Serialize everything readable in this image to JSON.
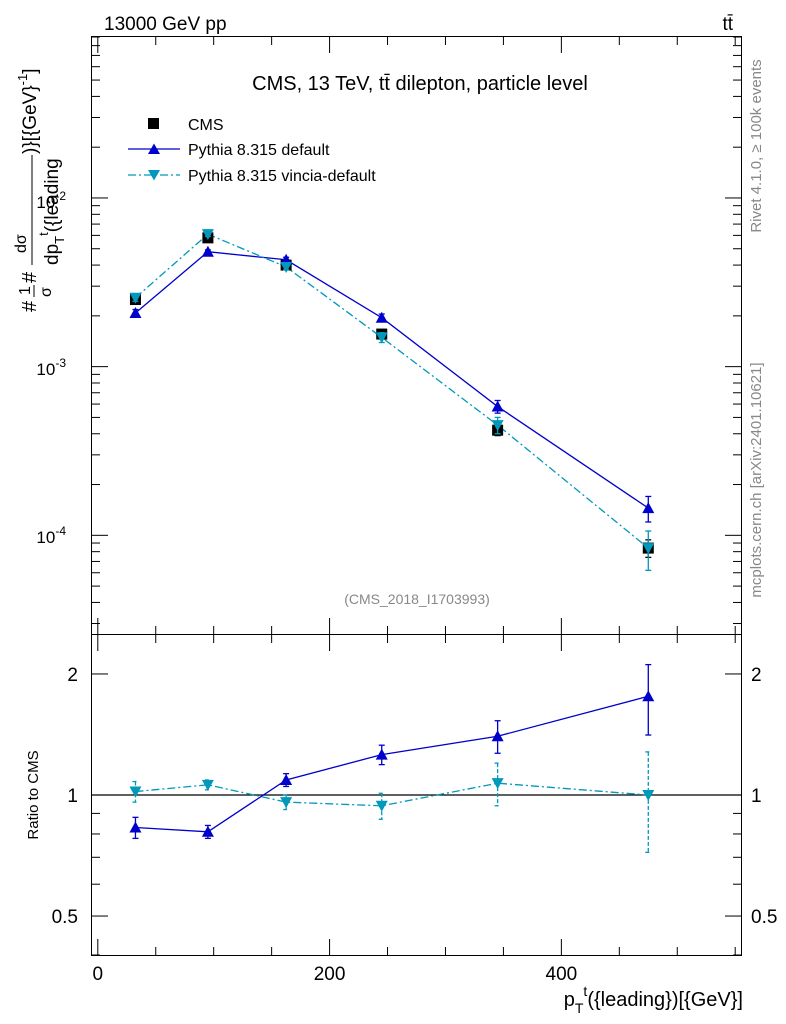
{
  "header": {
    "left": "13000 GeV pp",
    "right": "tt̄"
  },
  "side_labels": {
    "rivet": "Rivet 4.1.0, ≥ 100k events",
    "mcplots": "mcplots.cern.ch [arXiv:2401.10621]"
  },
  "colors": {
    "cms": "#000000",
    "pythia_default": "#0000cc",
    "pythia_vincia": "#0099bb",
    "axis": "#000000",
    "watermark": "#888888"
  },
  "chart_data": [
    {
      "type": "line",
      "title": "CMS, 13 TeV, tt̄ dilepton, particle level",
      "ylabel_main": "#1/σ#  dσ/dp_T^t({leading})[{GeV}^-1]",
      "ylabel_display": {
        "frac_prefix": "#",
        "frac1_num": "1",
        "frac1_den": "σ",
        "frac_sep": "#",
        "frac2_num": "dσ",
        "frac2_den": "dp",
        "frac2_den_sub": "T",
        "frac2_den_sup": "t",
        "frac2_den_tail": "({leading",
        "tail": ")}[{GeV}",
        "tail_sup": "-1",
        "tail_end": "]"
      },
      "xlabel": "p_T^t({leading})[{GeV}]",
      "xlabel_display": {
        "base": "p",
        "sub": "T",
        "sup": "t",
        "tail": "({leading})[{GeV}]"
      },
      "yscale": "log",
      "xlim": [
        -5,
        555
      ],
      "ylim": [
        2.6e-05,
        0.09
      ],
      "y_ticks": [
        {
          "base": "10",
          "exp": "-2"
        },
        {
          "base": "10",
          "exp": "-3"
        },
        {
          "base": "10",
          "exp": "-4"
        }
      ],
      "watermark": "(CMS_2018_I1703993)",
      "legend_position": "top-left",
      "series": [
        {
          "name": "CMS",
          "marker": "square",
          "x": [
            32.5,
            95,
            162.5,
            245,
            345,
            475
          ],
          "y": [
            0.0025,
            0.0058,
            0.004,
            0.00156,
            0.00042,
            8.4e-05
          ],
          "yerr_lo": [
            0.00012,
            0.00025,
            0.0002,
            0.0001,
            3e-05,
            1e-05
          ],
          "yerr_hi": [
            0.00012,
            0.00025,
            0.0002,
            0.0001,
            3e-05,
            1e-05
          ]
        },
        {
          "name": "Pythia 8.315 default",
          "marker": "triangle-up",
          "line": "solid",
          "x": [
            32.5,
            95,
            162.5,
            245,
            345,
            475
          ],
          "y": [
            0.00208,
            0.0048,
            0.0043,
            0.00195,
            0.00058,
            0.000145
          ],
          "yerr_lo": [
            0.0001,
            0.00012,
            0.00015,
            0.0001,
            5e-05,
            2.5e-05
          ],
          "yerr_hi": [
            0.0001,
            0.00012,
            0.00015,
            0.0001,
            5e-05,
            2.5e-05
          ]
        },
        {
          "name": "Pythia 8.315 vincia-default",
          "marker": "triangle-down",
          "line": "dashdot",
          "x": [
            32.5,
            95,
            162.5,
            245,
            345,
            475
          ],
          "y": [
            0.00256,
            0.0061,
            0.0039,
            0.00149,
            0.00045,
            8.4e-05
          ],
          "yerr_lo": [
            0.00012,
            0.00018,
            0.00015,
            0.0001,
            5e-05,
            2.2e-05
          ],
          "yerr_hi": [
            0.00012,
            0.00018,
            0.00015,
            0.0001,
            5e-05,
            2.2e-05
          ]
        }
      ]
    },
    {
      "type": "line",
      "ylabel": "Ratio to CMS",
      "yscale": "log",
      "xlim": [
        -5,
        555
      ],
      "ylim": [
        0.4,
        2.5
      ],
      "y_ticks": [
        "0.5",
        "1",
        "2"
      ],
      "x_ticks": [
        "0",
        "200",
        "400"
      ],
      "reference_line": 1,
      "series": [
        {
          "name": "Pythia 8.315 default",
          "x": [
            32.5,
            95,
            162.5,
            245,
            345,
            475
          ],
          "y": [
            0.83,
            0.81,
            1.09,
            1.26,
            1.4,
            1.76
          ],
          "yerr_lo": [
            0.05,
            0.03,
            0.04,
            0.07,
            0.13,
            0.35
          ],
          "yerr_hi": [
            0.05,
            0.03,
            0.04,
            0.07,
            0.13,
            0.35
          ]
        },
        {
          "name": "Pythia 8.315 vincia-default",
          "x": [
            32.5,
            95,
            162.5,
            245,
            345,
            475
          ],
          "y": [
            1.02,
            1.06,
            0.96,
            0.94,
            1.07,
            1.0
          ],
          "yerr_lo": [
            0.06,
            0.03,
            0.04,
            0.07,
            0.13,
            0.28
          ],
          "yerr_hi": [
            0.06,
            0.03,
            0.04,
            0.07,
            0.13,
            0.28
          ]
        }
      ]
    }
  ]
}
